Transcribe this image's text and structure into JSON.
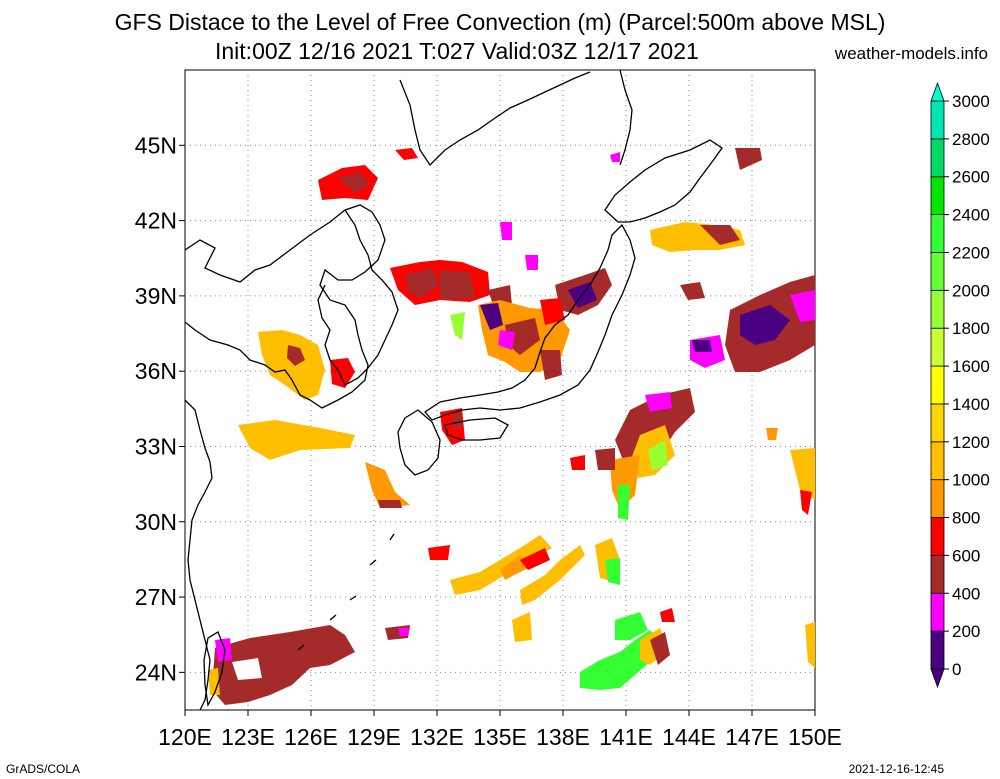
{
  "header": {
    "title_line1": "GFS Distace to the Level of Free Convection (m) (Parcel:500m above MSL)",
    "title_line2": "Init:00Z 12/16 2021 T:027 Valid:03Z 12/17 2021",
    "site": "weather-models.info"
  },
  "footer": {
    "left": "GrADS/COLA",
    "right": "2021-12-16-12:45"
  },
  "map": {
    "lon_range": [
      120,
      150
    ],
    "lat_range": [
      22.5,
      48
    ],
    "x_ticks": [
      "120E",
      "123E",
      "126E",
      "129E",
      "132E",
      "135E",
      "138E",
      "141E",
      "144E",
      "147E",
      "150E"
    ],
    "y_ticks": [
      "24N",
      "27N",
      "30N",
      "33N",
      "36N",
      "39N",
      "42N",
      "45N"
    ],
    "grid": "dotted"
  },
  "colorbar": {
    "labels": [
      "0",
      "200",
      "400",
      "600",
      "800",
      "1000",
      "1200",
      "1400",
      "1600",
      "1800",
      "2000",
      "2200",
      "2400",
      "2600",
      "2800",
      "3000"
    ],
    "colors": [
      "#4b0082",
      "#ff00ff",
      "#a52a2a",
      "#ff0000",
      "#ff9900",
      "#ffbf00",
      "#ffd700",
      "#ffff00",
      "#ccff33",
      "#99ff33",
      "#66ff33",
      "#33ff33",
      "#00e600",
      "#00d966",
      "#00e6b3",
      "#00ffcc"
    ]
  }
}
